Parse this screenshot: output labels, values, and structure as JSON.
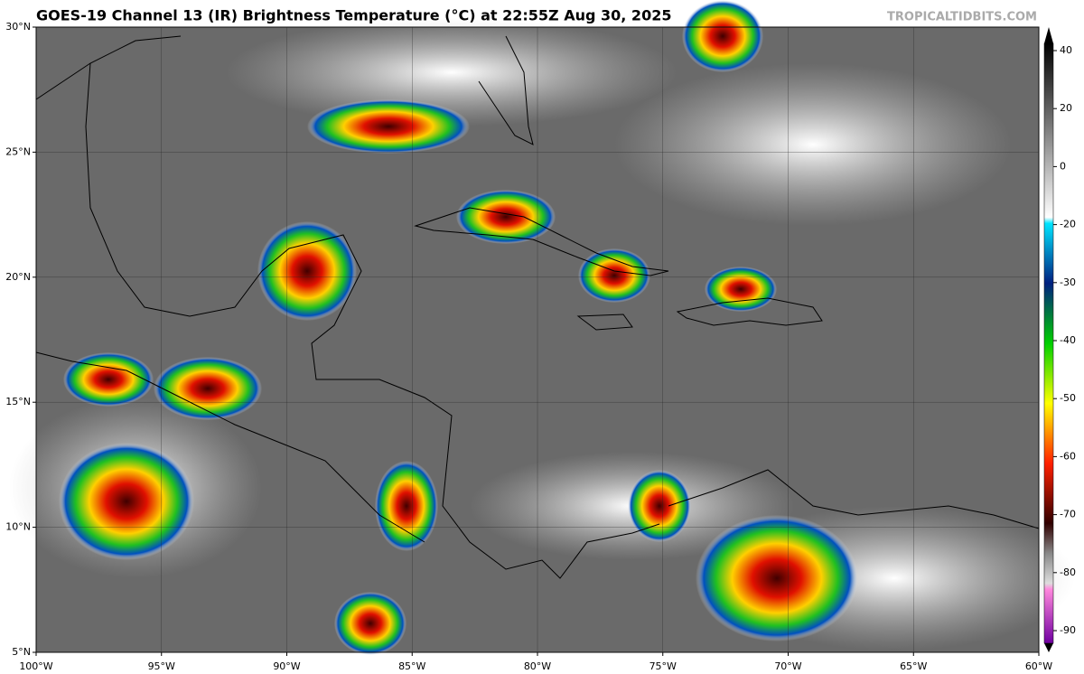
{
  "header": {
    "title": "GOES-19 Channel 13 (IR) Brightness Temperature (°C) at 22:55Z Aug 30, 2025",
    "site": "TROPICALTIDBITS.COM"
  },
  "map": {
    "lonlim": [
      -100,
      -60
    ],
    "latlim": [
      5,
      30
    ],
    "lonticks": [
      {
        "value": -100,
        "label": "100°W"
      },
      {
        "value": -95,
        "label": "95°W"
      },
      {
        "value": -90,
        "label": "90°W"
      },
      {
        "value": -85,
        "label": "85°W"
      },
      {
        "value": -80,
        "label": "80°W"
      },
      {
        "value": -75,
        "label": "75°W"
      },
      {
        "value": -70,
        "label": "70°W"
      },
      {
        "value": -65,
        "label": "65°W"
      },
      {
        "value": -60,
        "label": "60°W"
      }
    ],
    "latticks": [
      {
        "value": 5,
        "label": "5°N"
      },
      {
        "value": 10,
        "label": "10°N"
      },
      {
        "value": 15,
        "label": "15°N"
      },
      {
        "value": 20,
        "label": "20°N"
      },
      {
        "value": 25,
        "label": "25°N"
      },
      {
        "value": 30,
        "label": "30°N"
      }
    ],
    "grid": true
  },
  "colorbar": {
    "ticks": [
      40,
      20,
      0,
      -20,
      -30,
      -40,
      -50,
      -60,
      -70,
      -80,
      -90
    ]
  }
}
